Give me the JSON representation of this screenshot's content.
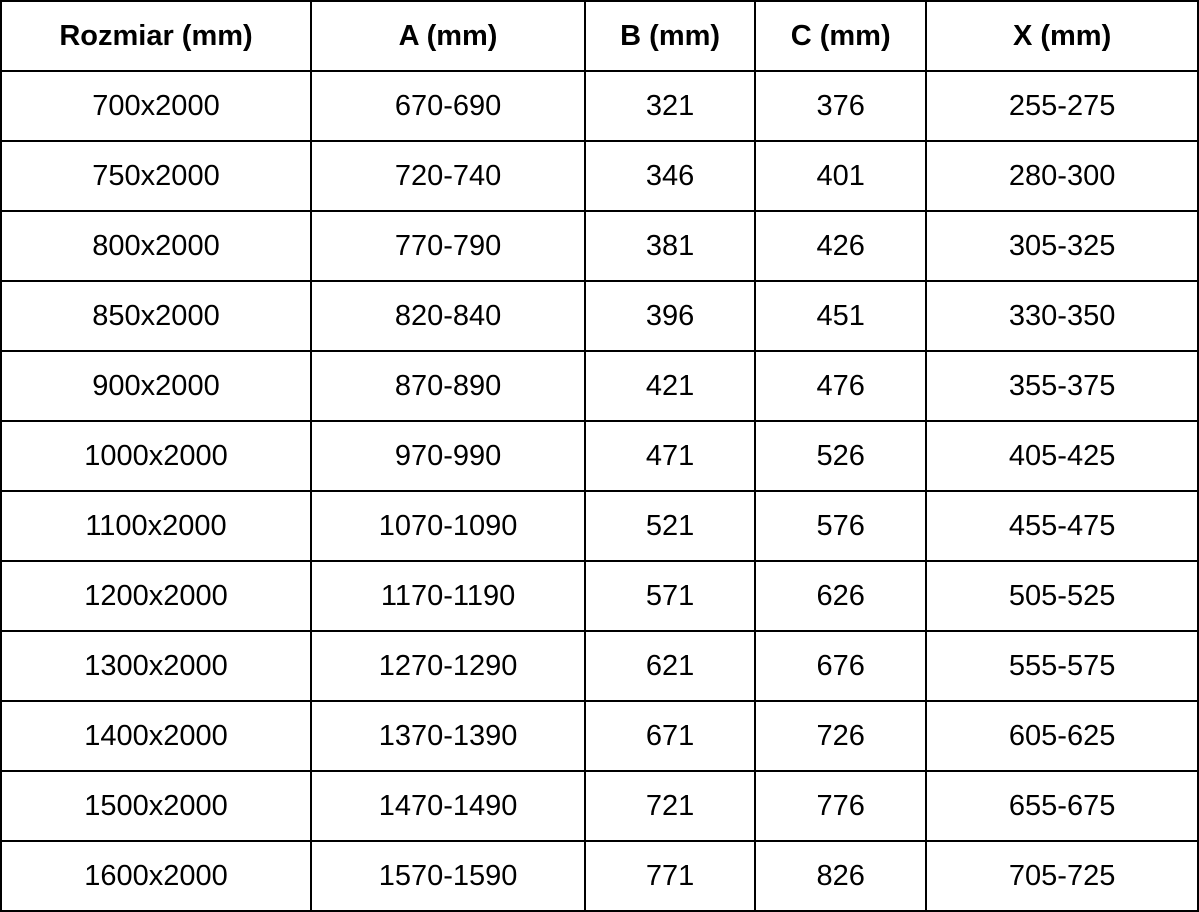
{
  "table": {
    "columns": [
      {
        "key": "rozmiar",
        "label": "Rozmiar (mm)"
      },
      {
        "key": "a",
        "label": "A (mm)"
      },
      {
        "key": "b",
        "label": "B (mm)"
      },
      {
        "key": "c",
        "label": "C (mm)"
      },
      {
        "key": "x",
        "label": "X (mm)"
      }
    ],
    "rows": [
      [
        "700x2000",
        "670-690",
        "321",
        "376",
        "255-275"
      ],
      [
        "750x2000",
        "720-740",
        "346",
        "401",
        "280-300"
      ],
      [
        "800x2000",
        "770-790",
        "381",
        "426",
        "305-325"
      ],
      [
        "850x2000",
        "820-840",
        "396",
        "451",
        "330-350"
      ],
      [
        "900x2000",
        "870-890",
        "421",
        "476",
        "355-375"
      ],
      [
        "1000x2000",
        "970-990",
        "471",
        "526",
        "405-425"
      ],
      [
        "1100x2000",
        "1070-1090",
        "521",
        "576",
        "455-475"
      ],
      [
        "1200x2000",
        "1170-1190",
        "571",
        "626",
        "505-525"
      ],
      [
        "1300x2000",
        "1270-1290",
        "621",
        "676",
        "555-575"
      ],
      [
        "1400x2000",
        "1370-1390",
        "671",
        "726",
        "605-625"
      ],
      [
        "1500x2000",
        "1470-1490",
        "721",
        "776",
        "655-675"
      ],
      [
        "1600x2000",
        "1570-1590",
        "771",
        "826",
        "705-725"
      ]
    ]
  },
  "colors": {
    "border": "#000000",
    "text": "#000000",
    "background": "#ffffff"
  }
}
